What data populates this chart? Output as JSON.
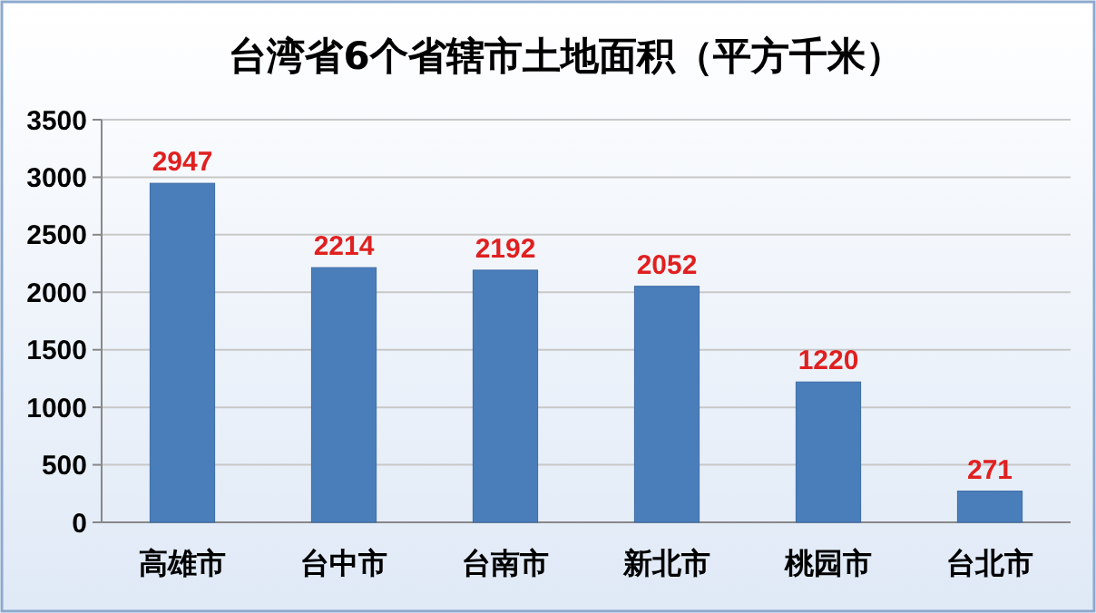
{
  "chart_data": {
    "type": "bar",
    "title": "台湾省6个省辖市土地面积（平方千米）",
    "categories": [
      "高雄市",
      "台中市",
      "台南市",
      "新北市",
      "桃园市",
      "台北市"
    ],
    "values": [
      2947,
      2214,
      2192,
      2052,
      1220,
      271
    ],
    "color": "#4a7ebb",
    "ylim": [
      0,
      3500
    ],
    "yticks": [
      0,
      500,
      1000,
      1500,
      2000,
      2500,
      3000,
      3500
    ],
    "grid": "y",
    "data_labels": true
  }
}
